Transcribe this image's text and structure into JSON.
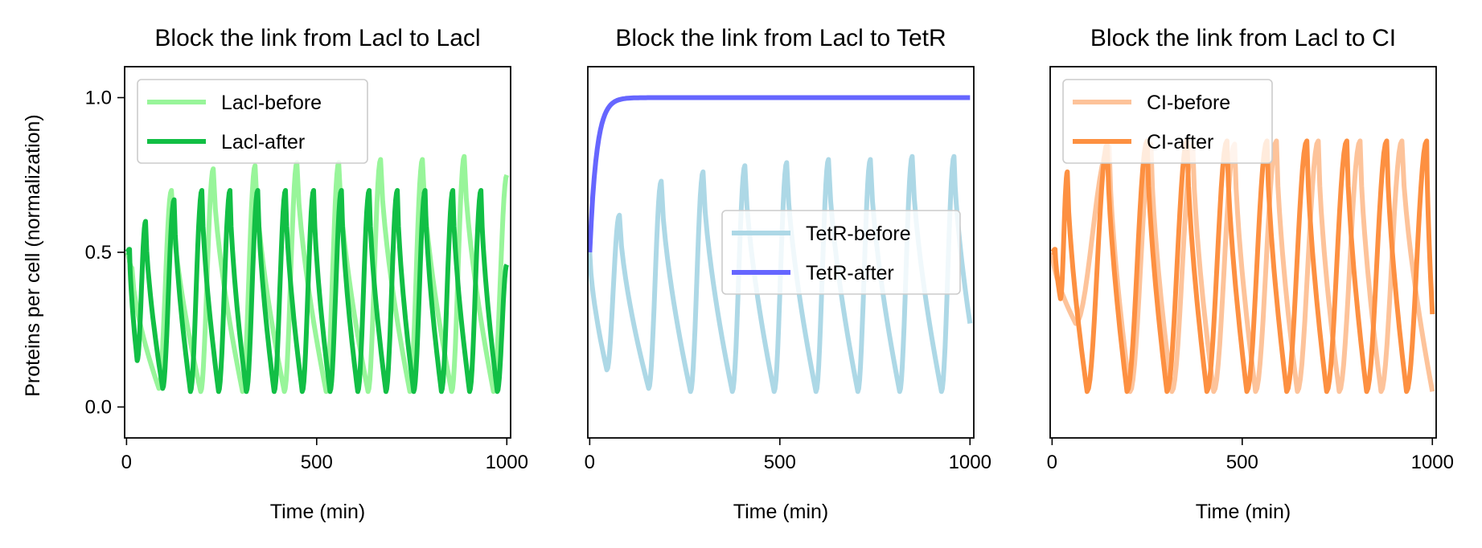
{
  "figure": {
    "ylabel": "Proteins per cell (normalization)"
  },
  "chart_data": [
    {
      "type": "line",
      "title": "Block the link from Lacl to Lacl",
      "xlabel": "Time (min)",
      "ylabel": "Proteins per cell (normalization)",
      "xlim": [
        -5,
        1010
      ],
      "ylim": [
        -0.1,
        1.1
      ],
      "xticks": [
        0,
        500,
        1000
      ],
      "yticks": [
        0.0,
        0.5,
        1.0
      ],
      "ytick_labels": [
        "0.0",
        "0.5",
        "1.0"
      ],
      "show_yticks": true,
      "legend": "top-left",
      "grid": false,
      "series": [
        {
          "name": "Lacl-before",
          "color": "#98f59a",
          "start": 0.5,
          "peaks": [
            [
              14,
              0.45
            ],
            [
              118,
              0.7
            ],
            [
              228,
              0.77
            ],
            [
              338,
              0.78
            ],
            [
              448,
              0.79
            ],
            [
              558,
              0.79
            ],
            [
              668,
              0.8
            ],
            [
              778,
              0.8
            ],
            [
              888,
              0.81
            ],
            [
              1000,
              0.75
            ]
          ],
          "troughs": [
            [
              85,
              0.06
            ],
            [
              195,
              0.05
            ],
            [
              305,
              0.05
            ],
            [
              415,
              0.05
            ],
            [
              525,
              0.05
            ],
            [
              635,
              0.05
            ],
            [
              745,
              0.05
            ],
            [
              855,
              0.05
            ],
            [
              965,
              0.05
            ]
          ]
        },
        {
          "name": "Lacl-after",
          "color": "#12bf45",
          "start": 0.5,
          "peaks": [
            [
              8,
              0.51
            ],
            [
              50,
              0.6
            ],
            [
              125,
              0.67
            ],
            [
              198,
              0.7
            ],
            [
              272,
              0.7
            ],
            [
              345,
              0.7
            ],
            [
              418,
              0.7
            ],
            [
              492,
              0.7
            ],
            [
              565,
              0.7
            ],
            [
              638,
              0.7
            ],
            [
              712,
              0.7
            ],
            [
              785,
              0.7
            ],
            [
              858,
              0.7
            ],
            [
              932,
              0.7
            ],
            [
              1000,
              0.46
            ]
          ],
          "troughs": [
            [
              28,
              0.15
            ],
            [
              95,
              0.06
            ],
            [
              168,
              0.05
            ],
            [
              242,
              0.05
            ],
            [
              315,
              0.05
            ],
            [
              388,
              0.05
            ],
            [
              462,
              0.05
            ],
            [
              535,
              0.05
            ],
            [
              608,
              0.05
            ],
            [
              682,
              0.05
            ],
            [
              755,
              0.05
            ],
            [
              828,
              0.05
            ],
            [
              902,
              0.05
            ],
            [
              975,
              0.05
            ]
          ]
        }
      ]
    },
    {
      "type": "line",
      "title": "Block the link from Lacl to TetR",
      "xlabel": "Time (min)",
      "ylabel": "",
      "xlim": [
        -5,
        1010
      ],
      "ylim": [
        -0.1,
        1.1
      ],
      "xticks": [
        0,
        500,
        1000
      ],
      "yticks": [
        0.0,
        0.5,
        1.0
      ],
      "ytick_labels": [],
      "show_yticks": false,
      "legend": "center-right",
      "grid": false,
      "series": [
        {
          "name": "TetR-before",
          "color": "#add8e6",
          "start": 0.5,
          "peaks": [
            [
              78,
              0.62
            ],
            [
              188,
              0.73
            ],
            [
              298,
              0.76
            ],
            [
              408,
              0.78
            ],
            [
              518,
              0.79
            ],
            [
              628,
              0.8
            ],
            [
              738,
              0.8
            ],
            [
              848,
              0.81
            ],
            [
              958,
              0.81
            ]
          ],
          "troughs": [
            [
              45,
              0.12
            ],
            [
              155,
              0.06
            ],
            [
              265,
              0.05
            ],
            [
              375,
              0.05
            ],
            [
              485,
              0.05
            ],
            [
              595,
              0.05
            ],
            [
              705,
              0.05
            ],
            [
              815,
              0.05
            ],
            [
              925,
              0.05
            ],
            [
              1000,
              0.27
            ]
          ]
        },
        {
          "name": "TetR-after",
          "color": "#6666ff",
          "start": 0.5,
          "saturation": {
            "target": 1.0,
            "tau_min": 18
          }
        }
      ]
    },
    {
      "type": "line",
      "title": "Block the link from Lacl to CI",
      "xlabel": "Time (min)",
      "ylabel": "",
      "xlim": [
        -5,
        1010
      ],
      "ylim": [
        -0.1,
        1.1
      ],
      "xticks": [
        0,
        500,
        1000
      ],
      "yticks": [
        0.0,
        0.5,
        1.0
      ],
      "ytick_labels": [],
      "show_yticks": false,
      "legend": "top-left",
      "grid": false,
      "series": [
        {
          "name": "CI-before",
          "color": "#fdc39a",
          "start": 0.5,
          "peaks": [
            [
              150,
              0.84
            ],
            [
              260,
              0.85
            ],
            [
              370,
              0.85
            ],
            [
              480,
              0.85
            ],
            [
              590,
              0.86
            ],
            [
              700,
              0.86
            ],
            [
              810,
              0.86
            ],
            [
              920,
              0.86
            ]
          ],
          "troughs": [
            [
              62,
              0.27
            ],
            [
              205,
              0.05
            ],
            [
              315,
              0.05
            ],
            [
              425,
              0.05
            ],
            [
              535,
              0.05
            ],
            [
              645,
              0.05
            ],
            [
              755,
              0.05
            ],
            [
              865,
              0.05
            ],
            [
              1000,
              0.05
            ]
          ]
        },
        {
          "name": "CI-after",
          "color": "#fd9041",
          "start": 0.5,
          "peaks": [
            [
              8,
              0.51
            ],
            [
              40,
              0.76
            ],
            [
              145,
              0.85
            ],
            [
              250,
              0.86
            ],
            [
              355,
              0.86
            ],
            [
              460,
              0.86
            ],
            [
              565,
              0.86
            ],
            [
              670,
              0.86
            ],
            [
              775,
              0.86
            ],
            [
              880,
              0.86
            ],
            [
              985,
              0.86
            ]
          ],
          "troughs": [
            [
              22,
              0.35
            ],
            [
              92,
              0.05
            ],
            [
              197,
              0.05
            ],
            [
              302,
              0.05
            ],
            [
              407,
              0.05
            ],
            [
              512,
              0.05
            ],
            [
              617,
              0.05
            ],
            [
              722,
              0.05
            ],
            [
              827,
              0.05
            ],
            [
              932,
              0.05
            ],
            [
              1000,
              0.3
            ]
          ]
        }
      ]
    }
  ]
}
